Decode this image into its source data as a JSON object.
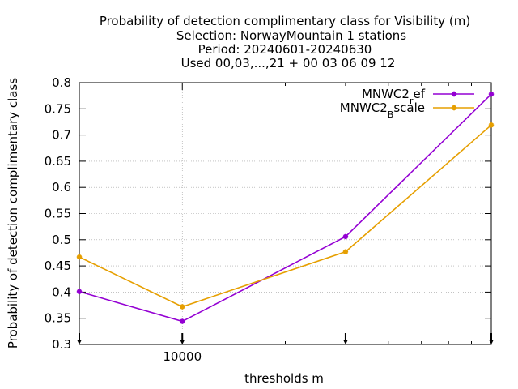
{
  "title_lines": [
    "Probability of detection complimentary class  for Visibility (m)",
    "Selection: NorwayMountain      1 stations",
    "Period: 20240601-20240630",
    "Used 00,03,...,21 + 00 03 06 09 12"
  ],
  "chart_data": {
    "type": "line",
    "xlabel": "thresholds m",
    "ylabel": "Probability of detection complimentary class",
    "x_scale": "log",
    "xlim": [
      5000,
      80000
    ],
    "ylim": [
      0.3,
      0.8
    ],
    "y_ticks": [
      "0.3",
      "0.35",
      "0.4",
      "0.45",
      "0.5",
      "0.55",
      "0.6",
      "0.65",
      "0.7",
      "0.75",
      "0.8"
    ],
    "x_tick_labels": [
      {
        "value": 10000,
        "label": "10000"
      }
    ],
    "x": [
      5000,
      10000,
      30000,
      80000
    ],
    "grid": true,
    "legend_position": "top-right",
    "series": [
      {
        "name_main": "MNWC2",
        "name_sub": "r",
        "name_tail": "ef",
        "color": "#9400d3",
        "values": [
          0.401,
          0.344,
          0.506,
          0.778
        ]
      },
      {
        "name_main": "MNWC2",
        "name_sub": "B",
        "name_tail": "scale",
        "color": "#e69f00",
        "values": [
          0.467,
          0.372,
          0.477,
          0.719
        ]
      }
    ]
  }
}
